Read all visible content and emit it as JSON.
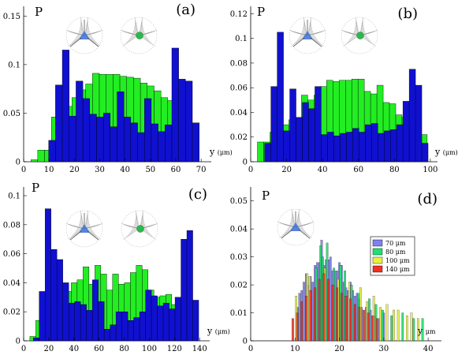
{
  "figure": {
    "colors": {
      "green": "#22ee22",
      "blue": "#1010d0",
      "c70": "#8080f0",
      "c80": "#20e070",
      "c100": "#e8f040",
      "c140": "#f03020",
      "axis": "#000000",
      "ink": "#555555"
    }
  },
  "chart_data": [
    {
      "type": "bar",
      "panel_label": "(a)",
      "ylabel": "P",
      "xlabel": "y",
      "xunit": "(μm)",
      "xlim": [
        0,
        74
      ],
      "ylim": [
        0,
        0.16
      ],
      "xticks": [
        0,
        10,
        20,
        30,
        40,
        50,
        60,
        70
      ],
      "yticks": [
        0,
        0.05,
        0.1,
        0.15
      ],
      "ytick_labels": [
        "0",
        "0.05",
        "0.1",
        "0.15"
      ],
      "bin_width": 2.7,
      "series": [
        {
          "color": "green",
          "x": [
            4.2,
            6.9,
            9.6,
            12.3,
            15.0,
            17.7,
            20.4,
            23.1,
            25.8,
            28.5,
            31.2,
            33.9,
            36.6,
            39.3,
            42.0,
            44.7,
            47.4,
            50.1,
            52.8,
            55.5,
            58.2,
            60.9,
            63.6
          ],
          "values": [
            0.002,
            0.012,
            0.012,
            0.046,
            0.049,
            0.057,
            0.066,
            0.074,
            0.08,
            0.091,
            0.09,
            0.09,
            0.09,
            0.088,
            0.087,
            0.086,
            0.081,
            0.078,
            0.073,
            0.066,
            0.063,
            0.044,
            0.022
          ]
        },
        {
          "color": "blue",
          "x": [
            11.2,
            13.9,
            16.6,
            19.3,
            22.0,
            24.7,
            27.4,
            30.1,
            32.8,
            35.5,
            38.2,
            40.9,
            43.6,
            46.3,
            49.0,
            51.7,
            54.4,
            57.1,
            59.8,
            62.5,
            65.2,
            67.9
          ],
          "values": [
            0.022,
            0.079,
            0.115,
            0.047,
            0.083,
            0.065,
            0.049,
            0.046,
            0.05,
            0.036,
            0.072,
            0.046,
            0.04,
            0.03,
            0.065,
            0.039,
            0.031,
            0.038,
            0.117,
            0.085,
            0.083,
            0.04
          ]
        }
      ],
      "inset_dot": true
    },
    {
      "type": "bar",
      "panel_label": "(b)",
      "ylabel": "P",
      "xlabel": "y",
      "xunit": "(μm)",
      "xlim": [
        0,
        104
      ],
      "ylim": [
        0,
        0.126
      ],
      "xticks": [
        0,
        20,
        40,
        60,
        80,
        100
      ],
      "yticks": [
        0,
        0.02,
        0.04,
        0.06,
        0.08,
        0.1,
        0.12
      ],
      "ytick_labels": [
        "0",
        "0.02",
        "0.04",
        "0.06",
        "0.08",
        "0.1",
        "0.12"
      ],
      "bin_width": 3.5,
      "series": [
        {
          "color": "green",
          "x": [
            5.5,
            9.0,
            12.5,
            16.0,
            19.5,
            23.0,
            26.5,
            30.0,
            33.5,
            37.0,
            40.5,
            44.0,
            47.5,
            51.0,
            54.5,
            58.0,
            61.5,
            65.0,
            68.5,
            72.0,
            75.5,
            79.0,
            82.5,
            86.0,
            89.5,
            93.0,
            96.5
          ],
          "values": [
            0.016,
            0.016,
            0.024,
            0.032,
            0.03,
            0.034,
            0.034,
            0.054,
            0.05,
            0.054,
            0.061,
            0.066,
            0.065,
            0.066,
            0.066,
            0.067,
            0.067,
            0.057,
            0.055,
            0.062,
            0.048,
            0.047,
            0.038,
            0.036,
            0.03,
            0.034,
            0.022
          ]
        },
        {
          "color": "blue",
          "x": [
            9.5,
            13.0,
            16.5,
            20.0,
            23.5,
            27.0,
            30.5,
            34.0,
            37.5,
            41.0,
            44.5,
            48.0,
            51.5,
            55.0,
            58.5,
            62.0,
            65.5,
            69.0,
            72.5,
            76.0,
            79.5,
            83.0,
            86.5,
            90.0,
            93.5,
            97.0
          ],
          "values": [
            0.015,
            0.061,
            0.105,
            0.025,
            0.059,
            0.036,
            0.048,
            0.043,
            0.061,
            0.022,
            0.024,
            0.021,
            0.023,
            0.024,
            0.027,
            0.024,
            0.03,
            0.031,
            0.023,
            0.025,
            0.026,
            0.03,
            0.049,
            0.075,
            0.062,
            0.015
          ]
        }
      ],
      "inset_dot": true
    },
    {
      "type": "bar",
      "panel_label": "(c)",
      "ylabel": "P",
      "xlabel": "y",
      "xunit": "(μm)",
      "xlim": [
        0,
        148
      ],
      "ylim": [
        0,
        0.106
      ],
      "xticks": [
        0,
        20,
        40,
        60,
        80,
        100,
        120,
        140
      ],
      "yticks": [
        0,
        0.02,
        0.04,
        0.06,
        0.08,
        0.1
      ],
      "ytick_labels": [
        "0",
        "0.02",
        "0.04",
        "0.06",
        "0.08",
        "0.1"
      ],
      "bin_width": 4.7,
      "series": [
        {
          "color": "green",
          "x": [
            7.3,
            12.0,
            16.7,
            21.4,
            26.1,
            30.8,
            35.5,
            40.2,
            44.9,
            49.6,
            54.3,
            59.0,
            63.7,
            68.4,
            73.1,
            77.8,
            82.5,
            87.2,
            91.9,
            96.6,
            101.3,
            106.0,
            110.7,
            115.4,
            120.1,
            124.8,
            129.5
          ],
          "values": [
            0.003,
            0.014,
            0.025,
            0.024,
            0.026,
            0.024,
            0.034,
            0.04,
            0.042,
            0.051,
            0.039,
            0.052,
            0.046,
            0.035,
            0.046,
            0.039,
            0.04,
            0.047,
            0.052,
            0.049,
            0.035,
            0.03,
            0.031,
            0.032,
            0.025,
            0.026,
            0.018
          ]
        },
        {
          "color": "blue",
          "x": [
            10.0,
            14.7,
            19.4,
            24.1,
            28.8,
            33.5,
            38.2,
            42.9,
            47.6,
            52.3,
            57.0,
            61.7,
            66.4,
            71.1,
            75.8,
            80.5,
            85.2,
            89.9,
            94.6,
            99.3,
            104.0,
            108.7,
            113.4,
            118.1,
            122.8,
            127.5,
            132.2,
            136.9
          ],
          "values": [
            0.002,
            0.034,
            0.091,
            0.063,
            0.056,
            0.04,
            0.026,
            0.027,
            0.025,
            0.021,
            0.042,
            0.027,
            0.008,
            0.011,
            0.02,
            0.02,
            0.014,
            0.016,
            0.02,
            0.035,
            0.031,
            0.024,
            0.026,
            0.022,
            0.03,
            0.07,
            0.076,
            0.028
          ]
        }
      ],
      "inset_dot": true
    },
    {
      "type": "bar",
      "panel_label": "(d)",
      "ylabel": "P",
      "xlabel": "y",
      "xunit": "μm",
      "xlim": [
        0,
        43
      ],
      "ylim": [
        0,
        0.055
      ],
      "xticks": [
        0,
        10,
        20,
        30,
        40
      ],
      "yticks": [
        0,
        0.01,
        0.02,
        0.03,
        0.04,
        0.05
      ],
      "ytick_labels": [
        "0",
        "0.01",
        "0.02",
        "0.03",
        "0.04",
        "0.05"
      ],
      "bin_width": 0.42,
      "legend_position": "upper right",
      "series": [
        {
          "name": "70 μm",
          "color": "c70",
          "x": [
            10.5,
            11.0,
            11.5,
            12.0,
            12.5,
            13.0,
            13.5,
            14.0,
            14.5,
            15.0,
            15.5,
            16.0,
            16.5,
            17.0,
            17.5,
            18.0,
            18.5,
            19.0,
            19.5,
            20.0,
            20.5,
            21.0,
            21.5,
            22.0,
            22.5,
            23.0,
            23.5,
            24.0,
            24.5,
            25.0,
            26.0,
            27.0,
            28.0,
            29.0,
            30.0
          ],
          "values": [
            0.012,
            0.017,
            0.018,
            0.021,
            0.024,
            0.02,
            0.023,
            0.021,
            0.027,
            0.028,
            0.028,
            0.036,
            0.027,
            0.029,
            0.029,
            0.03,
            0.025,
            0.025,
            0.025,
            0.028,
            0.027,
            0.021,
            0.019,
            0.018,
            0.021,
            0.018,
            0.016,
            0.017,
            0.015,
            0.012,
            0.012,
            0.011,
            0.009,
            0.008,
            0.01
          ]
        },
        {
          "name": "80 μm",
          "color": "c80",
          "x": [
            14.75,
            15.75,
            16.25,
            17.25,
            18.75,
            20.25,
            21.25,
            22.75,
            24.25,
            26.75,
            28.25,
            29.75,
            31.75,
            34.25,
            36.75,
            38.75
          ],
          "values": [
            0.026,
            0.034,
            0.03,
            0.035,
            0.026,
            0.027,
            0.025,
            0.02,
            0.017,
            0.015,
            0.013,
            0.011,
            0.009,
            0.01,
            0.008,
            0.008
          ]
        },
        {
          "name": "100 μm",
          "color": "c100",
          "x": [
            10.25,
            12.75,
            13.25,
            16.75,
            19.75,
            22.25,
            24.75,
            26.25,
            27.75,
            29.25,
            30.75,
            32.25,
            33.25,
            35.25,
            36.25,
            37.75
          ],
          "values": [
            0.016,
            0.024,
            0.023,
            0.026,
            0.022,
            0.021,
            0.019,
            0.014,
            0.016,
            0.012,
            0.013,
            0.011,
            0.011,
            0.009,
            0.01,
            0.008
          ]
        },
        {
          "name": "140 μm",
          "color": "c140",
          "x": [
            9.5,
            10.5,
            11.5,
            12.5,
            13.5,
            14.5,
            15.5,
            16.5,
            17.5,
            18.5,
            19.5,
            20.5,
            21.5,
            22.5,
            23.5,
            24.5,
            25.5,
            26.5,
            27.5,
            28.5
          ],
          "values": [
            0.008,
            0.01,
            0.014,
            0.016,
            0.018,
            0.019,
            0.022,
            0.024,
            0.022,
            0.02,
            0.019,
            0.017,
            0.016,
            0.015,
            0.013,
            0.012,
            0.011,
            0.01,
            0.009,
            0.008
          ]
        }
      ],
      "inset_dot": false
    }
  ]
}
